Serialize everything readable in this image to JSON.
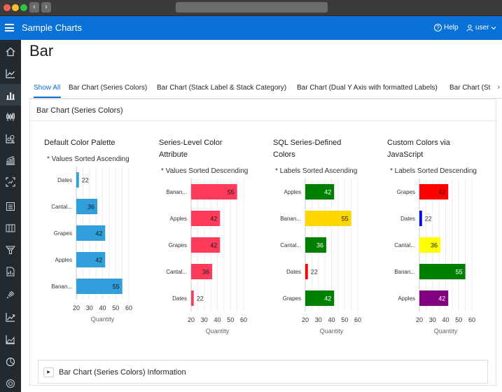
{
  "header": {
    "app_title": "Sample Charts",
    "help_label": "Help",
    "user_label": "user"
  },
  "page": {
    "title": "Bar"
  },
  "tabs": [
    {
      "label": "Show All"
    },
    {
      "label": "Bar Chart (Series Colors)"
    },
    {
      "label": "Bar Chart (Stack Label & Stack Category)"
    },
    {
      "label": "Bar Chart (Dual Y Axis with formatted Labels)"
    },
    {
      "label": "Bar Chart (St"
    }
  ],
  "region": {
    "title": "Bar Chart (Series Colors)"
  },
  "info_region": {
    "title": "Bar Chart (Series Colors) Information"
  },
  "chart_data": [
    {
      "type": "bar",
      "orientation": "horizontal",
      "title": "Default Color Palette",
      "subtitle": "* Values Sorted Ascending",
      "categories": [
        "Dates",
        "Cantal...",
        "Grapes",
        "Apples",
        "Banan..."
      ],
      "values": [
        22,
        36,
        42,
        42,
        55
      ],
      "colors": [
        "#309fdb",
        "#309fdb",
        "#309fdb",
        "#309fdb",
        "#309fdb"
      ],
      "xlabel": "Quantity",
      "xticks": [
        20,
        30,
        40,
        50,
        60
      ],
      "xlim": [
        20,
        60
      ]
    },
    {
      "type": "bar",
      "orientation": "horizontal",
      "title": "Series-Level Color Attribute",
      "subtitle": "* Values Sorted Descending",
      "categories": [
        "Banan...",
        "Apples",
        "Grapes",
        "Cantal...",
        "Dates"
      ],
      "values": [
        55,
        42,
        42,
        36,
        22
      ],
      "colors": [
        "#ff3b5c",
        "#ff3b5c",
        "#ff3b5c",
        "#ff3b5c",
        "#ff3b5c"
      ],
      "xlabel": "Quantity",
      "xticks": [
        20,
        30,
        40,
        50,
        60
      ],
      "xlim": [
        20,
        60
      ]
    },
    {
      "type": "bar",
      "orientation": "horizontal",
      "title": "SQL Series-Defined Colors",
      "subtitle": "* Labels Sorted Ascending",
      "categories": [
        "Apples",
        "Banan...",
        "Cantal...",
        "Dates",
        "Grapes"
      ],
      "values": [
        42,
        55,
        36,
        22,
        42
      ],
      "colors": [
        "#008000",
        "#ffd700",
        "#008000",
        "#ff0000",
        "#008000"
      ],
      "xlabel": "Quantity",
      "xticks": [
        20,
        30,
        40,
        50,
        60
      ],
      "xlim": [
        20,
        60
      ]
    },
    {
      "type": "bar",
      "orientation": "horizontal",
      "title": "Custom Colors via JavaScript",
      "subtitle": "* Labels Sorted Descending",
      "categories": [
        "Grapes",
        "Dates",
        "Cantal...",
        "Banan...",
        "Apples"
      ],
      "values": [
        42,
        22,
        36,
        55,
        42
      ],
      "colors": [
        "#ff0000",
        "#0000ff",
        "#ffff00",
        "#008000",
        "#800080"
      ],
      "xlabel": "Quantity",
      "xticks": [
        20,
        30,
        40,
        50,
        60
      ],
      "xlim": [
        20,
        60
      ]
    }
  ]
}
